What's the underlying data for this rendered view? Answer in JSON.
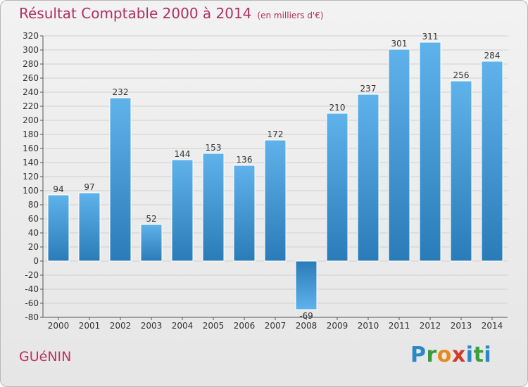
{
  "title": "Résultat Comptable 2000 à 2014",
  "unit_label": "(en milliers d'€)",
  "commune": "GUéNIN",
  "brand": {
    "letters": [
      "P",
      "r",
      "o",
      "x",
      "i",
      "t",
      "i"
    ],
    "colors": [
      "#2a88c8",
      "#3a9a3a",
      "#e88a1a",
      "#d23a2a",
      "#2a88c8",
      "#3aa03a",
      "#2a88c8"
    ]
  },
  "colors": {
    "bar_light": "#5fb2ea",
    "bar_dark": "#2a7cb8",
    "title": "#b03060",
    "grid": "#d0d0d0"
  },
  "chart_data": {
    "type": "bar",
    "categories": [
      "2000",
      "2001",
      "2002",
      "2003",
      "2004",
      "2005",
      "2006",
      "2007",
      "2008",
      "2009",
      "2010",
      "2011",
      "2012",
      "2013",
      "2014"
    ],
    "values": [
      94,
      97,
      232,
      52,
      144,
      153,
      136,
      172,
      -69,
      210,
      237,
      301,
      311,
      256,
      284
    ],
    "ylim": [
      -80,
      320
    ],
    "yticks": [
      -80,
      -60,
      -40,
      -20,
      0,
      20,
      40,
      60,
      80,
      100,
      120,
      140,
      160,
      180,
      200,
      220,
      240,
      260,
      280,
      300,
      320
    ],
    "grid": true,
    "data_labels": true
  }
}
